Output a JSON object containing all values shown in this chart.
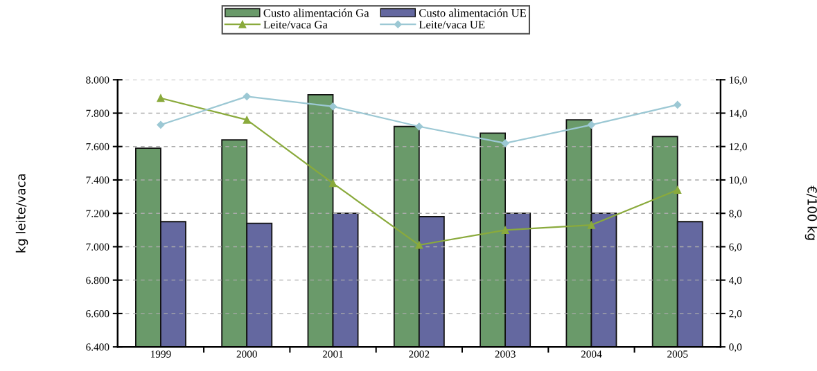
{
  "chart_data": {
    "type": "bar",
    "categories": [
      "1999",
      "2000",
      "2001",
      "2002",
      "2003",
      "2004",
      "2005"
    ],
    "ylabel": "kg leite/vaca",
    "y2label": "€/100 kg",
    "series": [
      {
        "name": "Custo alimentación Ga",
        "axis": "y2",
        "color": "#6a9a6a",
        "values": [
          11.9,
          12.4,
          15.1,
          13.2,
          12.8,
          13.6,
          12.6
        ]
      },
      {
        "name": "Custo alimentación UE",
        "axis": "y2",
        "color": "#6468a0",
        "values": [
          7.5,
          7.4,
          8.0,
          7.8,
          8.0,
          8.0,
          7.5
        ]
      },
      {
        "name": "Leite/vaca Ga",
        "type": "line",
        "axis": "y",
        "color": "#8aaa3c",
        "marker": "triangle",
        "values": [
          7890,
          7760,
          7380,
          7010,
          7100,
          7130,
          7340
        ]
      },
      {
        "name": "Leite/vaca UE",
        "type": "line",
        "axis": "y",
        "color": "#9cc8d4",
        "marker": "diamond",
        "values": [
          7730,
          7900,
          7840,
          7720,
          7620,
          7730,
          7850
        ]
      }
    ],
    "ylim": [
      6400,
      8000
    ],
    "yticks": [
      {
        "value": 6400,
        "label": "6.400"
      },
      {
        "value": 6600,
        "label": "6.600"
      },
      {
        "value": 6800,
        "label": "6.800"
      },
      {
        "value": 7000,
        "label": "7.000"
      },
      {
        "value": 7200,
        "label": "7.200"
      },
      {
        "value": 7400,
        "label": "7.400"
      },
      {
        "value": 7600,
        "label": "7.600"
      },
      {
        "value": 7800,
        "label": "7.800"
      },
      {
        "value": 8000,
        "label": "8.000"
      }
    ],
    "y2lim": [
      0,
      16
    ],
    "y2ticks": [
      {
        "value": 0,
        "label": "0,0"
      },
      {
        "value": 2,
        "label": "2,0"
      },
      {
        "value": 4,
        "label": "4,0"
      },
      {
        "value": 6,
        "label": "6,0"
      },
      {
        "value": 8,
        "label": "8,0"
      },
      {
        "value": 10,
        "label": "10,0"
      },
      {
        "value": 12,
        "label": "12,0"
      },
      {
        "value": 14,
        "label": "14,0"
      },
      {
        "value": 16,
        "label": "16,0"
      }
    ],
    "grid": "y",
    "legend": "top"
  }
}
